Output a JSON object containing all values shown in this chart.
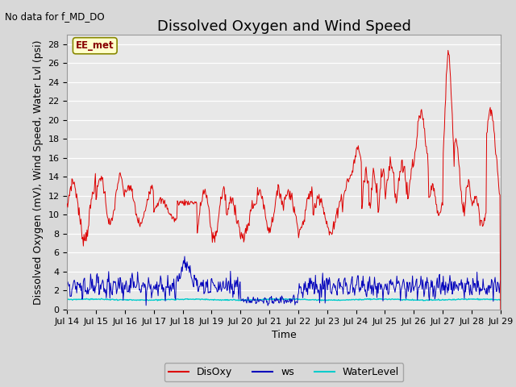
{
  "title": "Dissolved Oxygen and Wind Speed",
  "subtitle": "No data for f_MD_DO",
  "xlabel": "Time",
  "ylabel": "Dissolved Oxygen (mV), Wind Speed, Water Lvl (psi)",
  "annotation": "EE_met",
  "ylim": [
    0,
    29
  ],
  "yticks": [
    0,
    2,
    4,
    6,
    8,
    10,
    12,
    14,
    16,
    18,
    20,
    22,
    24,
    26,
    28
  ],
  "xtick_labels": [
    "Jul 14",
    "Jul 15",
    "Jul 16",
    "Jul 17",
    "Jul 18",
    "Jul 19",
    "Jul 20",
    "Jul 21",
    "Jul 22",
    "Jul 23",
    "Jul 24",
    "Jul 25",
    "Jul 26",
    "Jul 27",
    "Jul 28",
    "Jul 29"
  ],
  "fig_bg_color": "#d8d8d8",
  "plot_bg_color": "#e8e8e8",
  "grid_color": "#ffffff",
  "disoxy_color": "#dd0000",
  "ws_color": "#0000bb",
  "waterlevel_color": "#00cccc",
  "legend_labels": [
    "DisOxy",
    "ws",
    "WaterLevel"
  ],
  "title_fontsize": 13,
  "axis_label_fontsize": 9,
  "tick_fontsize": 8,
  "annotation_color": "#880000",
  "annotation_bg": "#ffffcc",
  "annotation_edge": "#888800"
}
